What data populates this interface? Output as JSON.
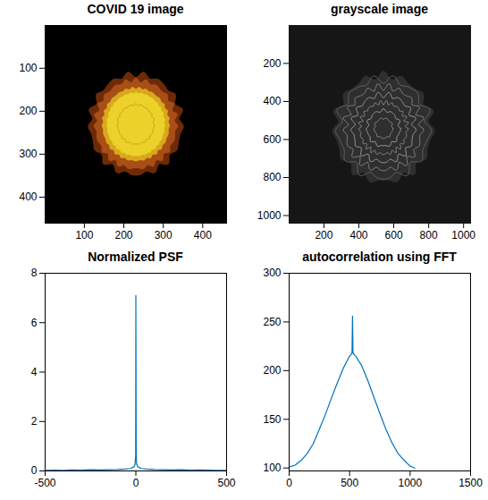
{
  "chart_data": [
    {
      "type": "image",
      "title": "COVID 19 image",
      "xlim": [
        0.5,
        460.5
      ],
      "ylim": [
        0.5,
        460.5
      ],
      "xticks": [
        100,
        200,
        300,
        400
      ],
      "yticks": [
        100,
        200,
        300,
        400
      ]
    },
    {
      "type": "image",
      "title": "grayscale image",
      "xlim": [
        0.5,
        1040
      ],
      "ylim": [
        0.5,
        1040
      ],
      "xticks": [
        200,
        400,
        600,
        800,
        1000
      ],
      "yticks": [
        200,
        400,
        600,
        800,
        1000
      ]
    },
    {
      "type": "line",
      "title": "Normalized PSF",
      "color": "#0072bd",
      "x": [
        -500,
        -450,
        -400,
        -350,
        -300,
        -250,
        -200,
        -150,
        -100,
        -60,
        -30,
        -15,
        -8,
        -4,
        -2,
        -1,
        0,
        1,
        2,
        4,
        8,
        15,
        30,
        60,
        100,
        150,
        200,
        250,
        300,
        350,
        400,
        450,
        500
      ],
      "values": [
        0.02,
        0.03,
        0.02,
        0.04,
        0.03,
        0.05,
        0.04,
        0.05,
        0.06,
        0.08,
        0.1,
        0.15,
        0.2,
        0.3,
        0.5,
        0.6,
        7.1,
        3.5,
        0.6,
        0.3,
        0.2,
        0.15,
        0.1,
        0.08,
        0.06,
        0.05,
        0.04,
        0.05,
        0.03,
        0.04,
        0.03,
        0.02,
        0.02
      ],
      "xlim": [
        -500,
        500
      ],
      "ylim": [
        0,
        8
      ],
      "xticks": [
        -500,
        0,
        500
      ],
      "yticks": [
        0,
        2,
        4,
        6,
        8
      ]
    },
    {
      "type": "line",
      "title": "autocorrelation using FFT",
      "color": "#0072bd",
      "x": [
        0,
        50,
        100,
        150,
        200,
        250,
        300,
        350,
        400,
        450,
        500,
        520,
        524,
        528,
        550,
        600,
        650,
        700,
        750,
        800,
        850,
        900,
        950,
        1000,
        1040
      ],
      "values": [
        101,
        103,
        108,
        115,
        125,
        140,
        155,
        172,
        188,
        203,
        215,
        218,
        256,
        218,
        215,
        205,
        190,
        173,
        156,
        140,
        126,
        115,
        108,
        102,
        100
      ],
      "xlim": [
        0,
        1500
      ],
      "ylim": [
        97,
        300
      ],
      "xticks": [
        0,
        500,
        1000,
        1500
      ],
      "yticks": [
        100,
        150,
        200,
        250,
        300
      ]
    }
  ]
}
